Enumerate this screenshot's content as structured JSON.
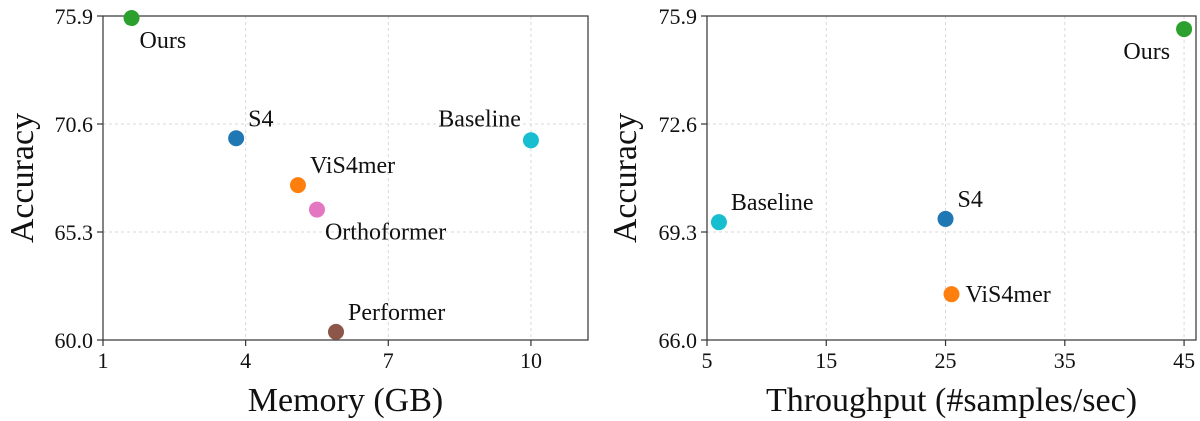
{
  "chart_data": [
    {
      "type": "scatter",
      "title": "",
      "xlabel": "Memory (GB)",
      "ylabel": "Accuracy",
      "xlim": [
        1,
        11.2
      ],
      "ylim": [
        60.0,
        75.9
      ],
      "xticks": [
        1,
        4,
        7,
        10
      ],
      "xtick_labels": [
        "1",
        "4",
        "7",
        "10"
      ],
      "yticks": [
        60.0,
        65.3,
        70.6,
        75.9
      ],
      "ytick_labels": [
        "60.0",
        "65.3",
        "70.6",
        "75.9"
      ],
      "grid": true,
      "points": [
        {
          "label": "Ours",
          "x": 1.6,
          "y": 75.8,
          "color": "#2ca02c",
          "label_pos": "below-right"
        },
        {
          "label": "S4",
          "x": 3.8,
          "y": 69.9,
          "color": "#1f77b4",
          "label_pos": "above-right"
        },
        {
          "label": "ViS4mer",
          "x": 5.1,
          "y": 67.6,
          "color": "#ff7f0e",
          "label_pos": "above-right"
        },
        {
          "label": "Orthoformer",
          "x": 5.5,
          "y": 66.4,
          "color": "#e377c2",
          "label_pos": "below-right"
        },
        {
          "label": "Performer",
          "x": 5.9,
          "y": 60.4,
          "color": "#8c564b",
          "label_pos": "above-right"
        },
        {
          "label": "Baseline",
          "x": 10.0,
          "y": 69.8,
          "color": "#17becf",
          "label_pos": "above-left"
        }
      ]
    },
    {
      "type": "scatter",
      "title": "",
      "xlabel": "Throughput (#samples/sec)",
      "ylabel": "Accuracy",
      "xlim": [
        5,
        46
      ],
      "ylim": [
        66.0,
        75.9
      ],
      "xticks": [
        5,
        15,
        25,
        35,
        45
      ],
      "xtick_labels": [
        "5",
        "15",
        "25",
        "35",
        "45"
      ],
      "yticks": [
        66.0,
        69.3,
        72.6,
        75.9
      ],
      "ytick_labels": [
        "66.0",
        "69.3",
        "72.6",
        "75.9"
      ],
      "grid": true,
      "points": [
        {
          "label": "Ours",
          "x": 45.0,
          "y": 75.5,
          "color": "#2ca02c",
          "label_pos": "below-left"
        },
        {
          "label": "Baseline",
          "x": 6.0,
          "y": 69.6,
          "color": "#17becf",
          "label_pos": "above-right"
        },
        {
          "label": "S4",
          "x": 25.0,
          "y": 69.7,
          "color": "#1f77b4",
          "label_pos": "above-right"
        },
        {
          "label": "ViS4mer",
          "x": 25.5,
          "y": 67.4,
          "color": "#ff7f0e",
          "label_pos": "right"
        }
      ]
    }
  ]
}
